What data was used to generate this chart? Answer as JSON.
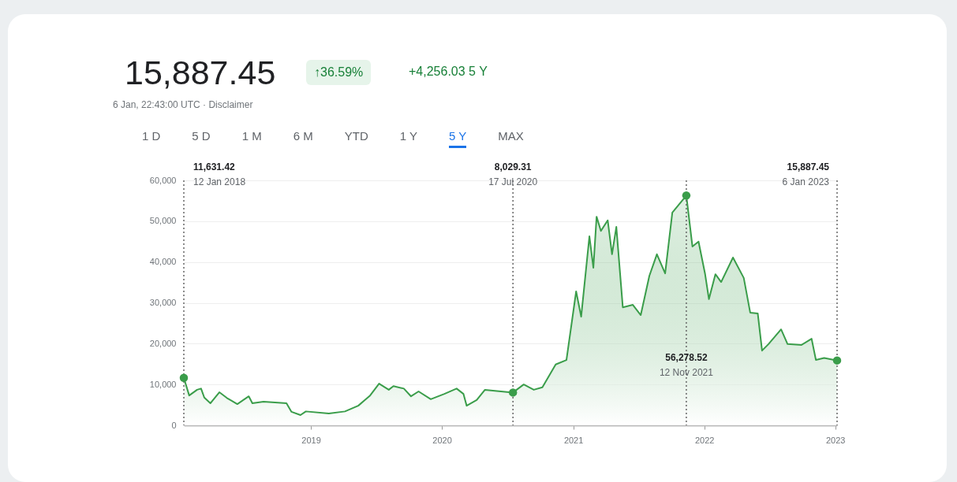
{
  "chart_data": {
    "type": "area",
    "title": "15,887.45",
    "subtitle": "6 Jan, 22:43:00 UTC · Disclaimer",
    "annotations": [
      "↑36.59%",
      "+4,256.03 5 Y",
      "1 D",
      "5 D",
      "1 M",
      "6 M",
      "YTD",
      "1 Y",
      "5 Y",
      "MAX"
    ],
    "x": [
      "2018-01-12",
      "2018-01-27",
      "2018-02-18",
      "2018-03-01",
      "2018-03-10",
      "2018-03-27",
      "2018-04-21",
      "2018-05-12",
      "2018-06-10",
      "2018-07-12",
      "2018-07-22",
      "2018-08-22",
      "2018-10-25",
      "2018-11-08",
      "2018-12-03",
      "2018-12-18",
      "2019-02-20",
      "2019-04-06",
      "2019-05-13",
      "2019-06-15",
      "2019-07-10",
      "2019-08-06",
      "2019-08-19",
      "2019-09-17",
      "2019-10-07",
      "2019-10-28",
      "2019-12-01",
      "2020-01-08",
      "2020-02-11",
      "2020-03-01",
      "2020-03-10",
      "2020-04-07",
      "2020-04-30",
      "2020-07-17",
      "2020-08-16",
      "2020-09-13",
      "2020-10-07",
      "2020-11-13",
      "2020-12-13",
      "2021-01-09",
      "2021-01-23",
      "2021-02-15",
      "2021-02-26",
      "2021-03-07",
      "2021-03-19",
      "2021-04-07",
      "2021-04-19",
      "2021-05-01",
      "2021-05-19",
      "2021-06-16",
      "2021-07-08",
      "2021-08-01",
      "2021-08-22",
      "2021-09-14",
      "2021-10-04",
      "2021-11-12",
      "2021-11-29",
      "2021-12-16",
      "2022-01-03",
      "2022-01-14",
      "2022-02-01",
      "2022-02-17",
      "2022-03-22",
      "2022-04-21",
      "2022-05-09",
      "2022-05-30",
      "2022-06-11",
      "2022-06-29",
      "2022-08-03",
      "2022-08-21",
      "2022-09-29",
      "2022-10-27",
      "2022-11-08",
      "2022-12-01",
      "2023-01-06"
    ],
    "series": [
      {
        "color": "#3a9d4a",
        "values": [
          11631.42,
          7300,
          8700,
          9000,
          6800,
          5400,
          8100,
          6700,
          5200,
          7100,
          5400,
          5800,
          5400,
          3300,
          2500,
          3400,
          2900,
          3400,
          4800,
          7300,
          10200,
          8700,
          9600,
          9000,
          7100,
          8300,
          6400,
          7700,
          9000,
          7700,
          4800,
          6200,
          8700,
          8029.31,
          10000,
          8700,
          9300,
          14900,
          16000,
          32800,
          26600,
          46300,
          38600,
          51100,
          47600,
          50200,
          41900,
          48600,
          28900,
          29500,
          27000,
          36600,
          41900,
          37200,
          52100,
          56278.52,
          43800,
          45000,
          37200,
          30900,
          37000,
          35100,
          41100,
          36100,
          27600,
          27400,
          18300,
          19900,
          23500,
          19900,
          19700,
          21200,
          16000,
          16500,
          15887.45
        ]
      }
    ],
    "xlim": [
      "2018-01-12",
      "2023-01-06"
    ],
    "xticks": [
      "2019",
      "2020",
      "2021",
      "2022",
      "2023"
    ],
    "ylim": [
      0,
      60000
    ],
    "yticks": [
      0,
      {
        "value": 10000,
        "label": "10,000"
      },
      {
        "value": 20000,
        "label": "20,000"
      },
      {
        "value": 30000,
        "label": "30,000"
      },
      {
        "value": 40000,
        "label": "40,000"
      },
      {
        "value": 50000,
        "label": "50,000"
      },
      {
        "value": 60000,
        "label": "60,000"
      }
    ],
    "ref_lines": [
      {
        "axis": "x",
        "value": "2018-01-12",
        "label": "11,631.42\n12 Jan 2018",
        "line_style": "dotted"
      },
      {
        "axis": "x",
        "value": "2020-07-17",
        "label": "8,029.31\n17 Jul 2020",
        "line_style": "dotted"
      },
      {
        "axis": "x",
        "value": "2021-11-12",
        "label": "56,278.52\n12 Nov 2021",
        "line_style": "dotted"
      },
      {
        "axis": "x",
        "value": "2023-01-06",
        "label": "15,887.45\n6 Jan 2023",
        "line_style": "dotted"
      }
    ],
    "grid": "y",
    "marker": "none",
    "line_style": "solid"
  }
}
